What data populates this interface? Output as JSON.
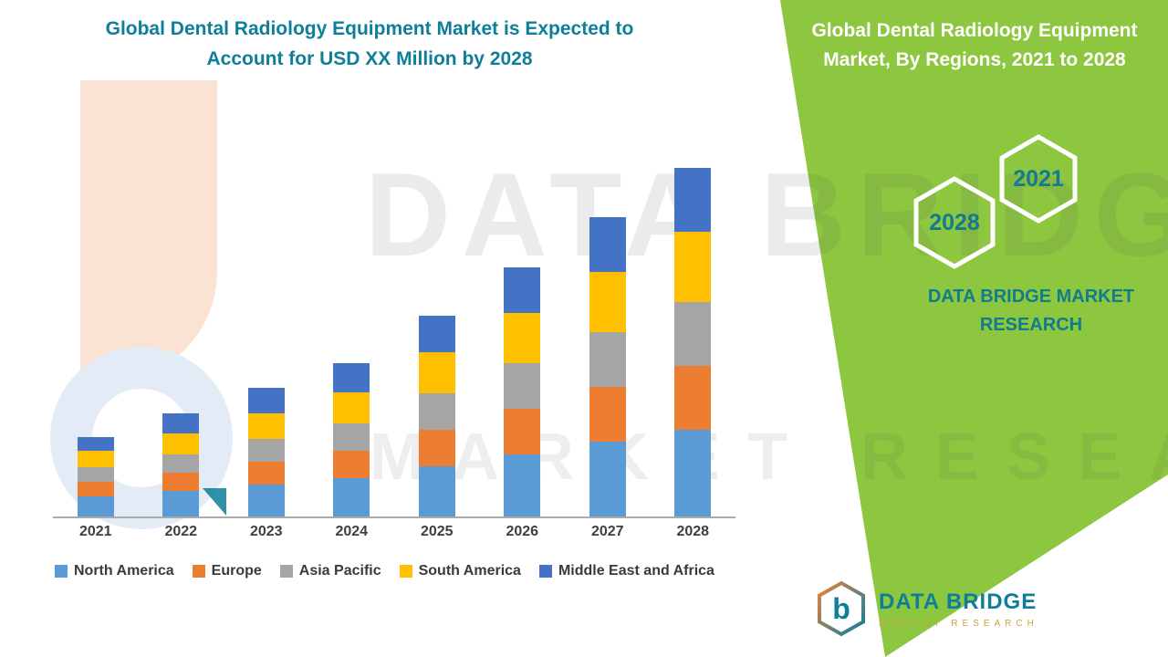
{
  "page": {
    "left_title_line1": "Global Dental Radiology Equipment Market is Expected to",
    "left_title_line2": "Account for USD XX Million by 2028",
    "right_title_line1": "Global Dental Radiology Equipment",
    "right_title_line2": "Market, By Regions, 2021 to 2028",
    "hex_year_back": "2028",
    "hex_year_front": "2021",
    "brand_text_line1": "DATA BRIDGE MARKET",
    "brand_text_line2": "RESEARCH",
    "watermark_line1": "DATA BRIDGE",
    "watermark_line2": "MARKET RESEARCH",
    "logo": {
      "letter": "b",
      "name": "DATA BRIDGE",
      "subtitle": "MARKET RESEARCH"
    }
  },
  "colors": {
    "green_panel": "#8DC63F",
    "teal_text": "#0E7E9A",
    "north_america": "#5B9BD5",
    "europe": "#ED7D31",
    "asia_pacific": "#A5A5A5",
    "south_america": "#FFC000",
    "middle_east_africa": "#4472C4"
  },
  "chart_data": {
    "type": "bar",
    "stacked": true,
    "title": "Global Dental Radiology Equipment Market is Expected to Account for USD XX Million by 2028",
    "categories": [
      "2021",
      "2022",
      "2023",
      "2024",
      "2025",
      "2026",
      "2027",
      "2028"
    ],
    "series": [
      {
        "name": "North America",
        "color": "#5B9BD5",
        "values": [
          22,
          28,
          35,
          42,
          55,
          68,
          82,
          95
        ]
      },
      {
        "name": "Europe",
        "color": "#ED7D31",
        "values": [
          16,
          20,
          25,
          30,
          40,
          50,
          60,
          70
        ]
      },
      {
        "name": "Asia Pacific",
        "color": "#A5A5A5",
        "values": [
          16,
          20,
          25,
          30,
          40,
          50,
          60,
          70
        ]
      },
      {
        "name": "South America",
        "color": "#FFC000",
        "values": [
          18,
          23,
          28,
          34,
          45,
          55,
          66,
          77
        ]
      },
      {
        "name": "Middle East and Africa",
        "color": "#4472C4",
        "values": [
          15,
          22,
          28,
          32,
          40,
          50,
          60,
          70
        ]
      }
    ],
    "xlabel": "",
    "ylabel": "",
    "y_axis_visible": false,
    "grid": false,
    "legend_position": "bottom",
    "units_note": "relative stacked heights; actual values shown as USD XX Million (not labeled on chart)"
  }
}
